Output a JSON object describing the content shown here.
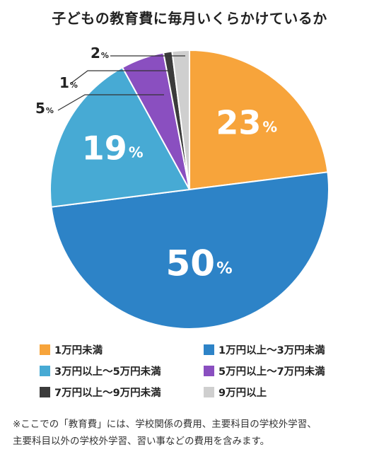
{
  "chart_data": {
    "type": "pie",
    "title": "子どもの教育費に毎月いくらかけているか",
    "slices": [
      {
        "label": "1万円未満",
        "value": 23,
        "display": "23",
        "unit": "%",
        "color": "#f7a43b"
      },
      {
        "label": "1万円以上〜3万円未満",
        "value": 50,
        "display": "50",
        "unit": "%",
        "color": "#2d83c7"
      },
      {
        "label": "3万円以上〜5万円未満",
        "value": 19,
        "display": "19",
        "unit": "%",
        "color": "#47aad4"
      },
      {
        "label": "5万円以上〜7万円未満",
        "value": 5,
        "display": "5",
        "unit": "%",
        "color": "#8a4fc0"
      },
      {
        "label": "7万円以上〜9万円未満",
        "value": 1,
        "display": "1",
        "unit": "%",
        "color": "#3b3b3b"
      },
      {
        "label": "9万円以上",
        "value": 2,
        "display": "2",
        "unit": "%",
        "color": "#cfcfcf"
      }
    ],
    "start_angle_deg": 0,
    "direction": "clockwise",
    "legend_position": "bottom"
  },
  "note": {
    "line1": "※ここでの「教育費」には、学校関係の費用、主要科目の学校外学習、",
    "line2": "主要科目以外の学校外学習、習い事などの費用を含みます。"
  }
}
